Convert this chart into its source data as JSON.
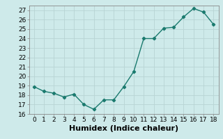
{
  "xlabel": "Humidex (Indice chaleur)",
  "x": [
    0,
    1,
    2,
    3,
    4,
    5,
    6,
    7,
    8,
    9,
    10,
    11,
    12,
    13,
    14,
    15,
    16,
    17,
    18
  ],
  "y": [
    18.9,
    18.4,
    18.2,
    17.8,
    18.1,
    17.0,
    16.5,
    17.5,
    17.5,
    18.9,
    20.5,
    24.0,
    24.0,
    25.1,
    25.2,
    26.3,
    27.2,
    26.8,
    25.5
  ],
  "line_color": "#1a7a6e",
  "marker": "D",
  "marker_size": 2.2,
  "line_width": 1.0,
  "ylim": [
    16,
    27.5
  ],
  "yticks": [
    16,
    17,
    18,
    19,
    20,
    21,
    22,
    23,
    24,
    25,
    26,
    27
  ],
  "xlim": [
    -0.5,
    18.5
  ],
  "xticks": [
    0,
    1,
    2,
    3,
    4,
    5,
    6,
    7,
    8,
    9,
    10,
    11,
    12,
    13,
    14,
    15,
    16,
    17,
    18
  ],
  "bg_color": "#ceeaea",
  "grid_color": "#b8d4d4",
  "xlabel_fontsize": 8,
  "tick_fontsize": 6.5
}
